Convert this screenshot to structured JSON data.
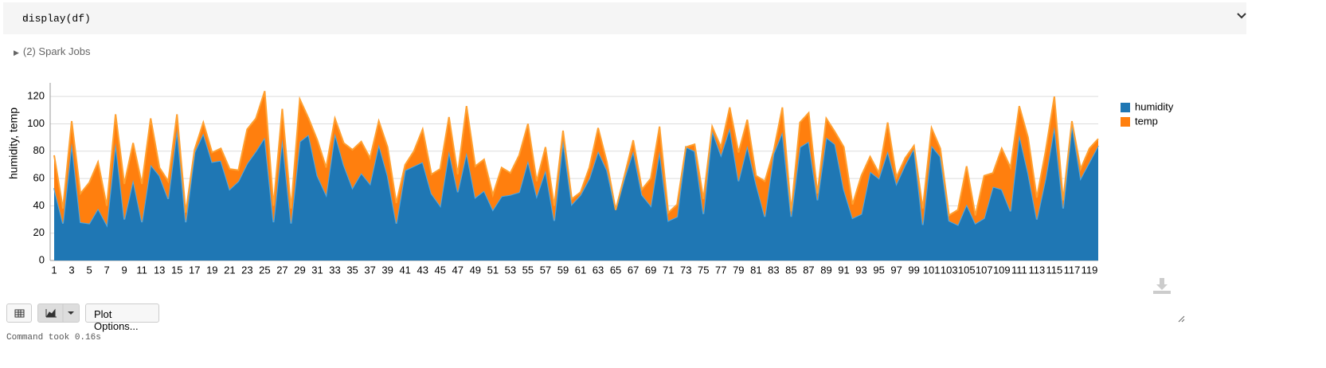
{
  "cell": {
    "code": "display(df)",
    "spark_jobs": "(2) Spark Jobs"
  },
  "toolbar": {
    "plot_options": "Plot Options..."
  },
  "footer": {
    "command_time": "Command took 0.16s"
  },
  "chart_data": {
    "type": "area",
    "stacked": true,
    "ylabel": "humidity, temp",
    "categories": [
      1,
      null,
      3,
      null,
      5,
      null,
      7,
      null,
      9,
      null,
      11,
      null,
      13,
      null,
      15,
      null,
      17,
      null,
      19,
      null,
      21,
      null,
      23,
      null,
      25,
      null,
      27,
      null,
      29,
      null,
      31,
      null,
      33,
      null,
      35,
      null,
      37,
      null,
      39,
      null,
      41,
      null,
      43,
      null,
      45,
      null,
      47,
      null,
      49,
      null,
      51,
      null,
      53,
      null,
      55,
      null,
      57,
      null,
      59,
      null,
      61,
      null,
      63,
      null,
      65,
      null,
      67,
      null,
      69,
      null,
      71,
      null,
      73,
      null,
      75,
      null,
      77,
      null,
      79,
      null,
      81,
      null,
      83,
      null,
      85,
      null,
      87,
      null,
      89,
      null,
      91,
      null,
      93,
      null,
      95,
      null,
      97,
      null,
      99,
      null,
      101,
      null,
      103,
      null,
      105,
      null,
      107,
      null,
      109,
      null,
      111,
      null,
      113,
      null,
      115,
      null,
      117,
      null,
      119,
      null
    ],
    "series": [
      {
        "name": "humidity",
        "color": "#1f77b4",
        "values": [
          53,
          27,
          86,
          28,
          27,
          38,
          26,
          86,
          30,
          59,
          28,
          70,
          62,
          45,
          96,
          28,
          79,
          93,
          72,
          73,
          52,
          58,
          71,
          80,
          90,
          28,
          89,
          27,
          87,
          92,
          62,
          48,
          93,
          70,
          53,
          64,
          56,
          85,
          62,
          27,
          66,
          69,
          72,
          49,
          40,
          80,
          50,
          79,
          46,
          51,
          37,
          47,
          48,
          50,
          73,
          47,
          66,
          29,
          88,
          41,
          48,
          60,
          80,
          66,
          37,
          60,
          80,
          48,
          40,
          80,
          29,
          32,
          83,
          80,
          34,
          95,
          77,
          97,
          58,
          84,
          56,
          32,
          78,
          94,
          32,
          83,
          87,
          44,
          90,
          85,
          52,
          31,
          34,
          65,
          60,
          80,
          56,
          70,
          82,
          26,
          84,
          76,
          29,
          26,
          41,
          27,
          31,
          54,
          52,
          36,
          92,
          64,
          30,
          60,
          98,
          38,
          100,
          60,
          72,
          84
        ]
      },
      {
        "name": "temp",
        "color": "#ff7f0e",
        "values": [
          24,
          11,
          16,
          21,
          30,
          34,
          14,
          21,
          26,
          27,
          28,
          34,
          6,
          13,
          11,
          7,
          2,
          8,
          7,
          9,
          15,
          8,
          25,
          24,
          34,
          12,
          22,
          11,
          31,
          12,
          26,
          20,
          11,
          16,
          28,
          23,
          19,
          17,
          21,
          15,
          4,
          11,
          24,
          14,
          27,
          25,
          13,
          34,
          23,
          23,
          11,
          21,
          16,
          27,
          27,
          11,
          17,
          11,
          7,
          4,
          2,
          8,
          17,
          6,
          0,
          2,
          8,
          4,
          20,
          18,
          6,
          9,
          0,
          5,
          11,
          3,
          6,
          15,
          21,
          19,
          6,
          26,
          2,
          18,
          4,
          18,
          21,
          5,
          14,
          9,
          31,
          10,
          28,
          11,
          4,
          21,
          5,
          5,
          2,
          12,
          13,
          6,
          4,
          11,
          28,
          6,
          31,
          10,
          30,
          32,
          21,
          26,
          16,
          20,
          22,
          6,
          2,
          7,
          10,
          5
        ]
      }
    ],
    "ylim": [
      0,
      130
    ],
    "yticks": [
      0,
      20,
      40,
      60,
      80,
      100,
      120
    ],
    "grid": true,
    "legend": "right"
  }
}
